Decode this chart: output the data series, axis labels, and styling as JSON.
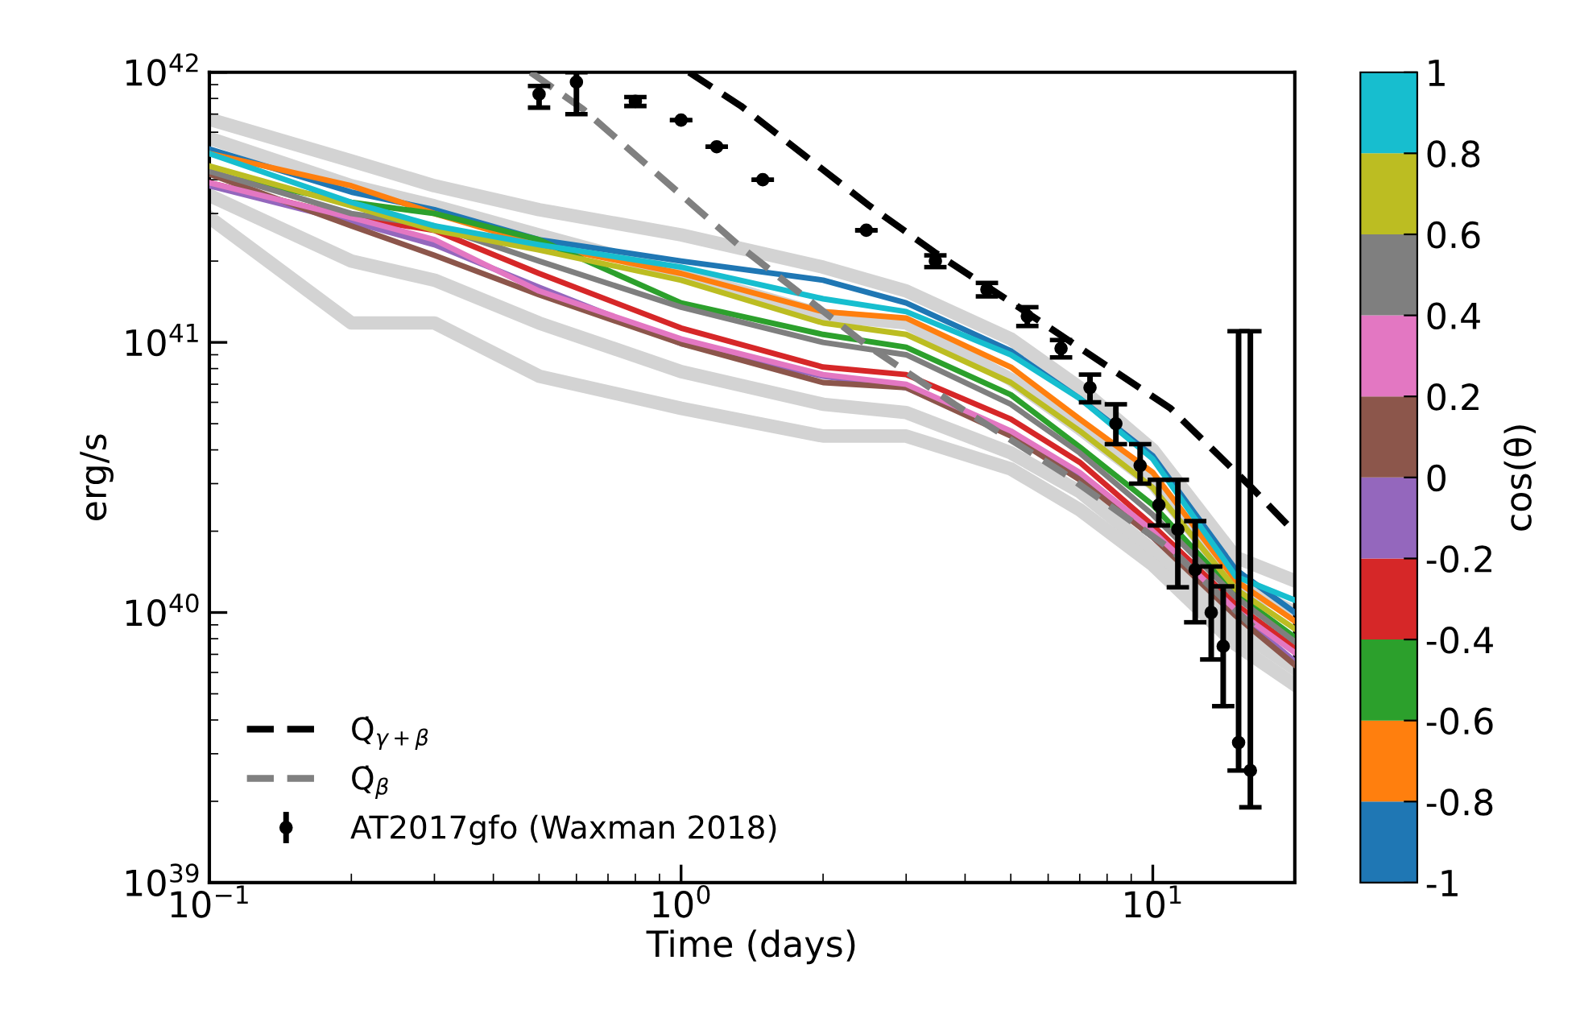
{
  "chart_data": {
    "type": "line",
    "xlabel": "Time (days)",
    "ylabel": "erg/s",
    "clabel": "cos(θ)",
    "log": "xy",
    "legend": "bottom left",
    "grid": false,
    "xlim": [
      0.1,
      20
    ],
    "ylim": [
      1e+39,
      1e+42
    ],
    "xticks": [
      {
        "value": 0.1,
        "label": "10$^{−1}$"
      },
      {
        "value": 1,
        "label": "10$^{0}$"
      },
      {
        "value": 10,
        "label": "10$^{1}$"
      }
    ],
    "yticks": [
      {
        "value": 1e+39,
        "label": "10$^{39}$"
      },
      {
        "value": 1e+40,
        "label": "10$^{40}$"
      },
      {
        "value": 1e+41,
        "label": "10$^{41}$"
      },
      {
        "value": 1e+42,
        "label": "10$^{42}$"
      }
    ],
    "clim": [
      -1,
      1
    ],
    "cticks": [
      {
        "value": -1,
        "label": "-1"
      },
      {
        "value": -0.8,
        "label": "-0.8"
      },
      {
        "value": -0.6,
        "label": "-0.6"
      },
      {
        "value": -0.4,
        "label": "-0.4"
      },
      {
        "value": -0.2,
        "label": "-0.2"
      },
      {
        "value": 0,
        "label": "0"
      },
      {
        "value": 0.2,
        "label": "0.2"
      },
      {
        "value": 0.4,
        "label": "0.4"
      },
      {
        "value": 0.6,
        "label": "0.6"
      },
      {
        "value": 0.8,
        "label": "0.8"
      },
      {
        "value": 1,
        "label": "1"
      }
    ],
    "x": [
      0.1,
      0.2,
      0.3,
      0.5,
      1,
      2,
      3,
      5,
      7,
      10,
      15,
      20
    ],
    "series": [
      {
        "color": "#d3d3d3",
        "values": [
          6.7e+41,
          4.7e+41,
          3.8e+41,
          3.1e+41,
          2.5e+41,
          1.9e+41,
          1.55e+41,
          1.03e+41,
          6.8e+40,
          4e+40,
          1.6e+40,
          1.31e+40
        ]
      },
      {
        "color": "#d3d3d3",
        "values": [
          5.7e+41,
          3.8e+41,
          3.2e+41,
          2.5e+41,
          1.8e+41,
          1.26e+41,
          1.18e+41,
          7.3e+40,
          4.8e+40,
          3e+40,
          1.28e+40,
          1e+40
        ]
      },
      {
        "color": "#d3d3d3",
        "values": [
          3.5e+41,
          2e+41,
          1.7e+41,
          1.18e+41,
          7.8e+40,
          5.9e+40,
          5.5e+40,
          3.9e+40,
          2.8e+40,
          1.7e+40,
          8.7e+39,
          6.2e+39
        ]
      },
      {
        "color": "#d3d3d3",
        "values": [
          2.9e+41,
          1.18e+41,
          1.18e+41,
          7.5e+40,
          5.7e+40,
          4.5e+40,
          4.5e+40,
          3.4e+40,
          2.4e+40,
          1.5e+40,
          7.6e+39,
          5.4e+39
        ]
      },
      {
        "color": "#1f77b4",
        "values": [
          5.2e+41,
          3.6e+41,
          3.1e+41,
          2.4e+41,
          2e+41,
          1.7e+41,
          1.4e+41,
          9.3e+40,
          6.2e+40,
          3.8e+40,
          1.44e+40,
          1e+40
        ]
      },
      {
        "color": "#ff7f0e",
        "values": [
          5e+41,
          3.8e+41,
          3e+41,
          2.3e+41,
          1.8e+41,
          1.3e+41,
          1.23e+41,
          8.1e+40,
          5.2e+40,
          3.3e+40,
          1.31e+40,
          9.3e+39
        ]
      },
      {
        "color": "#2ca02c",
        "values": [
          4.2e+41,
          3.3e+41,
          3e+41,
          2.4e+41,
          1.4e+41,
          1.07e+41,
          9.6e+40,
          6.4e+40,
          4.1e+40,
          2.5e+40,
          1.17e+40,
          8.1e+39
        ]
      },
      {
        "color": "#d62728",
        "values": [
          3.9e+41,
          2.9e+41,
          2.6e+41,
          1.8e+41,
          1.13e+41,
          8.1e+40,
          7.6e+40,
          5.2e+40,
          3.6e+40,
          2.1e+40,
          1.07e+40,
          7.4e+39
        ]
      },
      {
        "color": "#9467bd",
        "values": [
          3.8e+41,
          2.8e+41,
          2.3e+41,
          1.6e+41,
          9.9e+40,
          7.5e+40,
          6.8e+40,
          4.6e+40,
          3.2e+40,
          1.9e+40,
          1e+40,
          6.6e+39
        ]
      },
      {
        "color": "#8c564b",
        "values": [
          4.2e+41,
          2.7e+41,
          2.1e+41,
          1.5e+41,
          9.9e+40,
          7.1e+40,
          6.8e+40,
          4.5e+40,
          3.1e+40,
          1.9e+40,
          9.7e+39,
          6.4e+39
        ]
      },
      {
        "color": "#e377c2",
        "values": [
          3.9e+41,
          2.9e+41,
          2.4e+41,
          1.55e+41,
          1.03e+41,
          7.6e+40,
          7e+40,
          4.7e+40,
          3.3e+40,
          2e+40,
          1.02e+40,
          7.1e+39
        ]
      },
      {
        "color": "#7f7f7f",
        "values": [
          4.3e+41,
          3e+41,
          2.7e+41,
          2e+41,
          1.35e+41,
          1e+41,
          9e+40,
          5.9e+40,
          3.9e+40,
          2.3e+40,
          1.14e+40,
          7.8e+39
        ]
      },
      {
        "color": "#bcbd22",
        "values": [
          4.5e+41,
          3.2e+41,
          2.6e+41,
          2.2e+41,
          1.7e+41,
          1.18e+41,
          1.07e+41,
          7.1e+40,
          4.7e+40,
          2.9e+40,
          1.22e+40,
          8.7e+39
        ]
      },
      {
        "color": "#17becf",
        "values": [
          5e+41,
          3.3e+41,
          2.7e+41,
          2.3e+41,
          1.9e+41,
          1.45e+41,
          1.3e+41,
          9e+40,
          6.2e+40,
          3.7e+40,
          1.36e+40,
          1.11e+40
        ]
      },
      {
        "name": "Q̇$_{γ+β}$",
        "color": "#000000",
        "line_style": "dashed",
        "x": [
          1.04,
          1.34,
          2.51,
          3.44,
          5.37,
          10.9,
          16.2,
          20
        ],
        "values": [
          1e+42,
          7.5e+41,
          3.2e+41,
          2.16e+41,
          1.3e+41,
          5.7e+40,
          2.9e+40,
          1.98e+40
        ]
      },
      {
        "name": "Q̇$_{β}$",
        "color": "#808080",
        "line_style": "dashed",
        "x": [
          0.48,
          0.62,
          1.34,
          2.45,
          3.8,
          6.44,
          10.9,
          16.5
        ],
        "values": [
          1e+42,
          7.3e+41,
          2.25e+41,
          9.9e+40,
          5.9e+40,
          3.3e+40,
          1.72e+40,
          8.7e+39
        ]
      },
      {
        "name": "AT2017gfo (Waxman 2018)",
        "type": "scatter",
        "marker": "circle",
        "color": "#000000",
        "x": [
          0.5,
          0.6,
          0.8,
          1.0,
          1.19,
          1.49,
          2.47,
          3.46,
          4.45,
          5.42,
          6.39,
          7.36,
          8.35,
          9.4,
          10.3,
          11.3,
          12.3,
          13.3,
          14.1,
          15.2,
          16.1
        ],
        "values": [
          8.3e+41,
          9.2e+41,
          7.8e+41,
          6.65e+41,
          5.3e+41,
          4e+41,
          2.6e+41,
          2e+41,
          1.57e+41,
          1.25e+41,
          9.5e+40,
          6.8e+40,
          5e+40,
          3.5e+40,
          2.5e+40,
          2.03e+40,
          1.44e+40,
          1e+40,
          7.5e+39,
          3.3e+39,
          2.6e+39
        ],
        "errors": [
          [
            7.4e+41,
            8.9e+41
          ],
          [
            7e+41,
            1e+42
          ],
          [
            7.5e+41,
            8.1e+41
          ],
          null,
          null,
          null,
          null,
          [
            1.9e+41,
            2.1e+41
          ],
          [
            1.48e+41,
            1.66e+41
          ],
          [
            1.15e+41,
            1.35e+41
          ],
          [
            8.8e+40,
            1.02e+41
          ],
          [
            6e+40,
            7.6e+40
          ],
          [
            4.2e+40,
            5.9e+40
          ],
          [
            3e+40,
            4.2e+40
          ],
          [
            2.1e+40,
            3.1e+40
          ],
          [
            1.24e+40,
            3.1e+40
          ],
          [
            9.2e+39,
            2.18e+40
          ],
          [
            6.7e+39,
            1.48e+40
          ],
          [
            4.5e+39,
            1.25e+40
          ],
          [
            2.6e+39,
            1.1e+41
          ],
          [
            1.9e+39,
            1.1e+41
          ]
        ]
      }
    ]
  }
}
